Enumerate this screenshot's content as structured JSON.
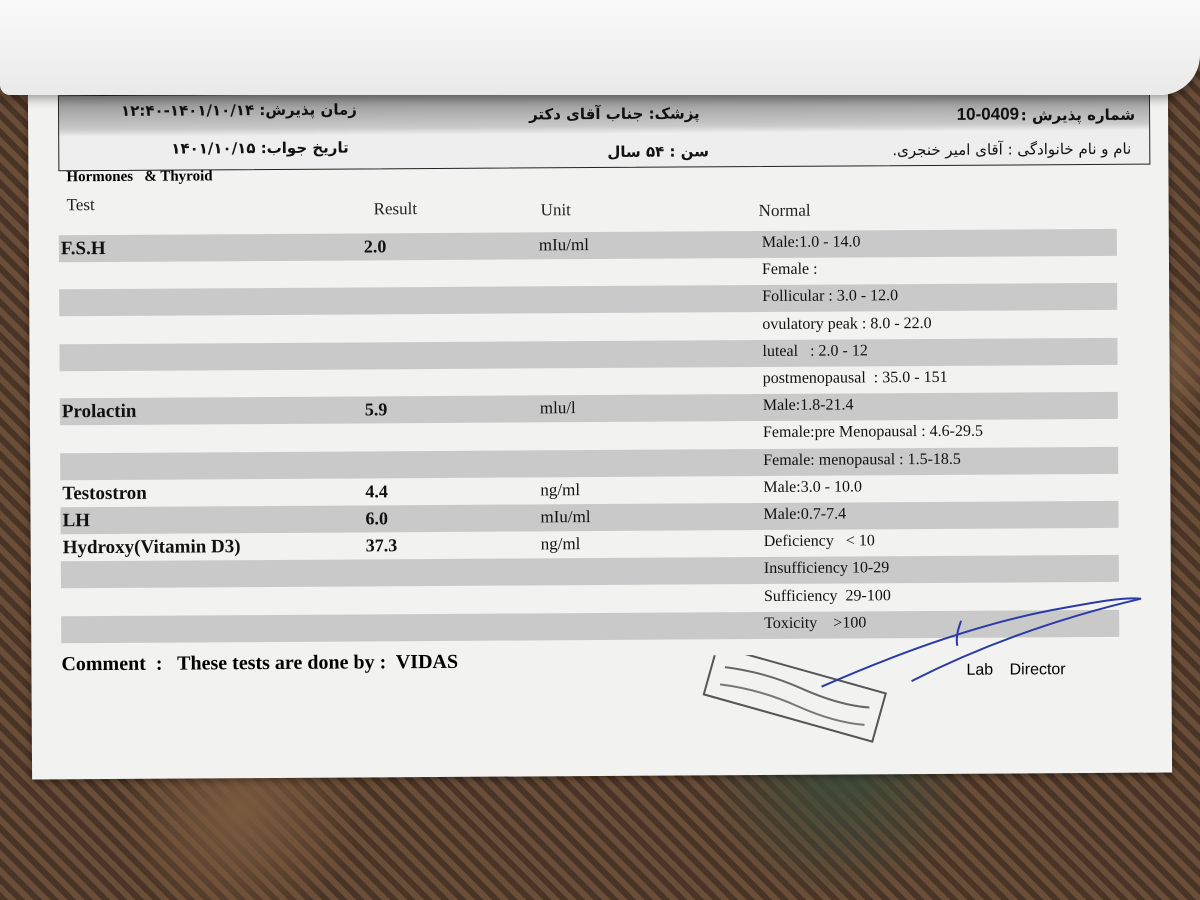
{
  "header": {
    "admission_number_label": "شماره پذیرش :",
    "admission_number": "10-0409",
    "physician": "پزشک: جناب آقای دکتر",
    "admission_time": "زمان پذیرش: ۱۴۰۱/۱۰/۱۴-۱۲:۴۰",
    "patient_name": "نام و نام خانوادگی : آقای امیر خنجری.",
    "age": "سن : ۵۴ سال",
    "answer_date": "تاریخ جواب: ۱۴۰۱/۱۰/۱۵"
  },
  "section_title": "Hormones   & Thyroid",
  "columns": [
    "Test",
    "Result",
    "Unit",
    "Normal"
  ],
  "rows": [
    {
      "test": "F.S.H",
      "result": "2.0",
      "unit": "mIu/ml",
      "normal": "Male:1.0 - 14.0"
    },
    {
      "test": "",
      "result": "",
      "unit": "",
      "normal": "Female :"
    },
    {
      "test": "",
      "result": "",
      "unit": "",
      "normal": "Follicular : 3.0 - 12.0"
    },
    {
      "test": "",
      "result": "",
      "unit": "",
      "normal": "ovulatory peak : 8.0 - 22.0"
    },
    {
      "test": "",
      "result": "",
      "unit": "",
      "normal": "luteal   : 2.0 - 12"
    },
    {
      "test": "",
      "result": "",
      "unit": "",
      "normal": "postmenopausal  : 35.0 - 151"
    },
    {
      "test": "Prolactin",
      "result": "5.9",
      "unit": "mlu/l",
      "normal": "Male:1.8-21.4"
    },
    {
      "test": "",
      "result": "",
      "unit": "",
      "normal": "Female:pre Menopausal : 4.6-29.5"
    },
    {
      "test": "",
      "result": "",
      "unit": "",
      "normal": "Female: menopausal : 1.5-18.5"
    },
    {
      "test": "Testostron",
      "result": "4.4",
      "unit": "ng/ml",
      "normal": "Male:3.0 - 10.0"
    },
    {
      "test": "LH",
      "result": "6.0",
      "unit": "mIu/ml",
      "normal": "Male:0.7-7.4"
    },
    {
      "test": "Hydroxy(Vitamin D3)",
      "result": "37.3",
      "unit": "ng/ml",
      "normal": "Deficiency   < 10"
    },
    {
      "test": "",
      "result": "",
      "unit": "",
      "normal": "Insufficiency 10-29"
    },
    {
      "test": "",
      "result": "",
      "unit": "",
      "normal": "Sufficiency  29-100"
    },
    {
      "test": "",
      "result": "",
      "unit": "",
      "normal": "Toxicity    >100"
    }
  ],
  "comment": "Comment  :   These tests are done by :  VIDAS",
  "signature_label": "Lab Director",
  "stamp_text": "illegible Persian laboratory stamp"
}
